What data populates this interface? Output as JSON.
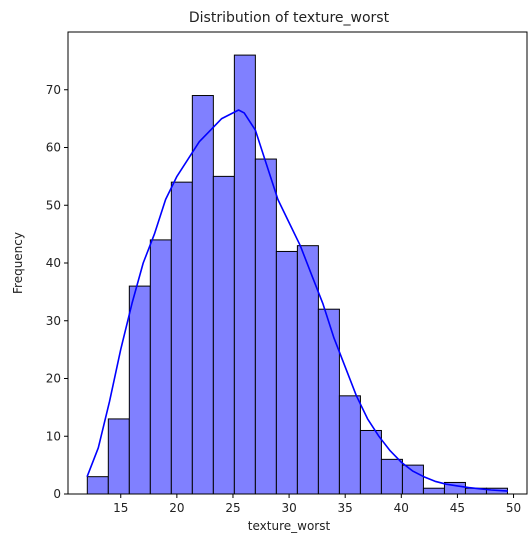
{
  "chart_data": {
    "type": "bar",
    "title": "Distribution of texture_worst",
    "xlabel": "texture_worst",
    "ylabel": "Frequency",
    "xlim": [
      10.3,
      51.2
    ],
    "ylim": [
      0,
      80
    ],
    "xticks": [
      15,
      20,
      25,
      30,
      35,
      40,
      45,
      50
    ],
    "yticks": [
      0,
      10,
      20,
      30,
      40,
      50,
      60,
      70
    ],
    "bin_start": 12.02,
    "bin_width": 1.872,
    "values": [
      3,
      13,
      36,
      44,
      54,
      69,
      55,
      76,
      58,
      42,
      43,
      32,
      17,
      11,
      6,
      5,
      1,
      2,
      1,
      1
    ],
    "bar_color": "#8080ff",
    "bar_edge_color": "#000000",
    "kde": {
      "color": "#0000ff",
      "x": [
        12.0,
        13.0,
        14.0,
        15.0,
        16.0,
        17.0,
        18.0,
        19.0,
        20.0,
        21.0,
        22.0,
        23.0,
        24.0,
        25.0,
        25.5,
        26.0,
        27.0,
        28.0,
        29.0,
        30.0,
        31.0,
        32.0,
        33.0,
        34.0,
        35.0,
        36.0,
        37.0,
        38.0,
        39.0,
        40.0,
        41.0,
        42.0,
        43.0,
        44.0,
        45.0,
        46.0,
        47.0,
        48.0,
        49.5
      ],
      "y": [
        3,
        8,
        16,
        25,
        33,
        40,
        45,
        51,
        55,
        58,
        61,
        63,
        65,
        66,
        66.5,
        66,
        63,
        57,
        51,
        47,
        43,
        38,
        33,
        27,
        22,
        17,
        13,
        10,
        7.5,
        5.5,
        4,
        3,
        2.2,
        1.7,
        1.4,
        1.1,
        0.9,
        0.7,
        0.5
      ]
    },
    "grid": false,
    "legend": "none"
  }
}
